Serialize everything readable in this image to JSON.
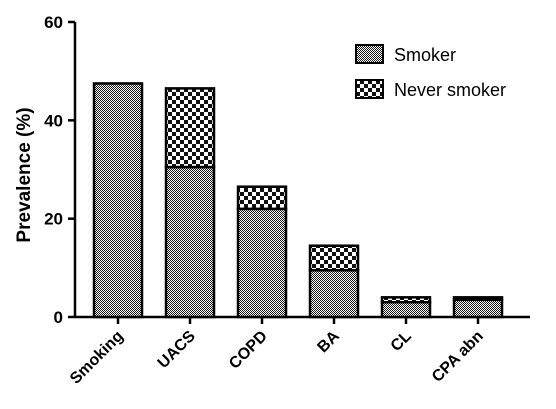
{
  "chart_data": {
    "type": "bar",
    "stacked": true,
    "categories": [
      "Smoking",
      "UACS",
      "COPD",
      "BA",
      "CL",
      "CPA abn"
    ],
    "series": [
      {
        "name": "Smoker",
        "values": [
          47.5,
          30.5,
          22,
          9.5,
          3,
          3.5
        ]
      },
      {
        "name": "Never smoker",
        "values": [
          0,
          16,
          4.5,
          5,
          1,
          0.5
        ]
      }
    ],
    "ylabel": "Prevalence (%)",
    "xlabel": "",
    "ylim": [
      0,
      60
    ],
    "yticks": [
      0,
      20,
      40,
      60
    ],
    "grid": false,
    "legend_position": "top-right"
  }
}
